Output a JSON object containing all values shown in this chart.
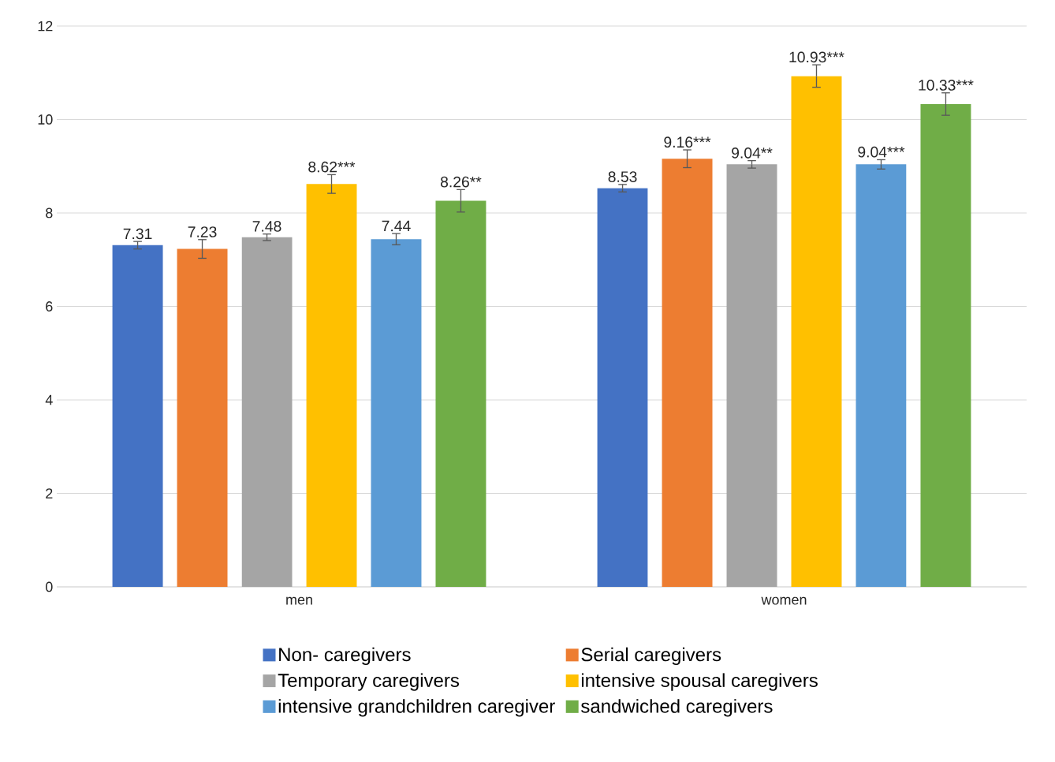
{
  "chart_data": {
    "type": "bar",
    "categories": [
      "men",
      "women"
    ],
    "series": [
      {
        "name": "Non- caregivers",
        "color": "#4472c4",
        "values": [
          7.31,
          8.53
        ],
        "errors": [
          0.08,
          0.08
        ],
        "value_labels": [
          "7.31",
          "8.53"
        ]
      },
      {
        "name": "Serial caregivers",
        "color": "#ed7d31",
        "values": [
          7.23,
          9.16
        ],
        "errors": [
          0.2,
          0.19
        ],
        "value_labels": [
          "7.23",
          "9.16***"
        ]
      },
      {
        "name": "Temporary caregivers",
        "color": "#a5a5a5",
        "values": [
          7.48,
          9.04
        ],
        "errors": [
          0.07,
          0.08
        ],
        "value_labels": [
          "7.48",
          "9.04**"
        ]
      },
      {
        "name": "intensive spousal caregivers",
        "color": "#ffc000",
        "values": [
          8.62,
          10.93
        ],
        "errors": [
          0.2,
          0.24
        ],
        "value_labels": [
          "8.62***",
          "10.93***"
        ]
      },
      {
        "name": "intensive grandchildren caregiver",
        "color": "#5b9bd5",
        "values": [
          7.44,
          9.04
        ],
        "errors": [
          0.12,
          0.1
        ],
        "value_labels": [
          "7.44",
          "9.04***"
        ]
      },
      {
        "name": "sandwiched caregivers",
        "color": "#70ad47",
        "values": [
          8.26,
          10.33
        ],
        "errors": [
          0.24,
          0.24
        ],
        "value_labels": [
          "8.26**",
          "10.33***"
        ]
      }
    ],
    "ylim": [
      0,
      12
    ],
    "yticks": [
      0,
      2,
      4,
      6,
      8,
      10,
      12
    ],
    "grid": "y",
    "legend": "bottom"
  }
}
